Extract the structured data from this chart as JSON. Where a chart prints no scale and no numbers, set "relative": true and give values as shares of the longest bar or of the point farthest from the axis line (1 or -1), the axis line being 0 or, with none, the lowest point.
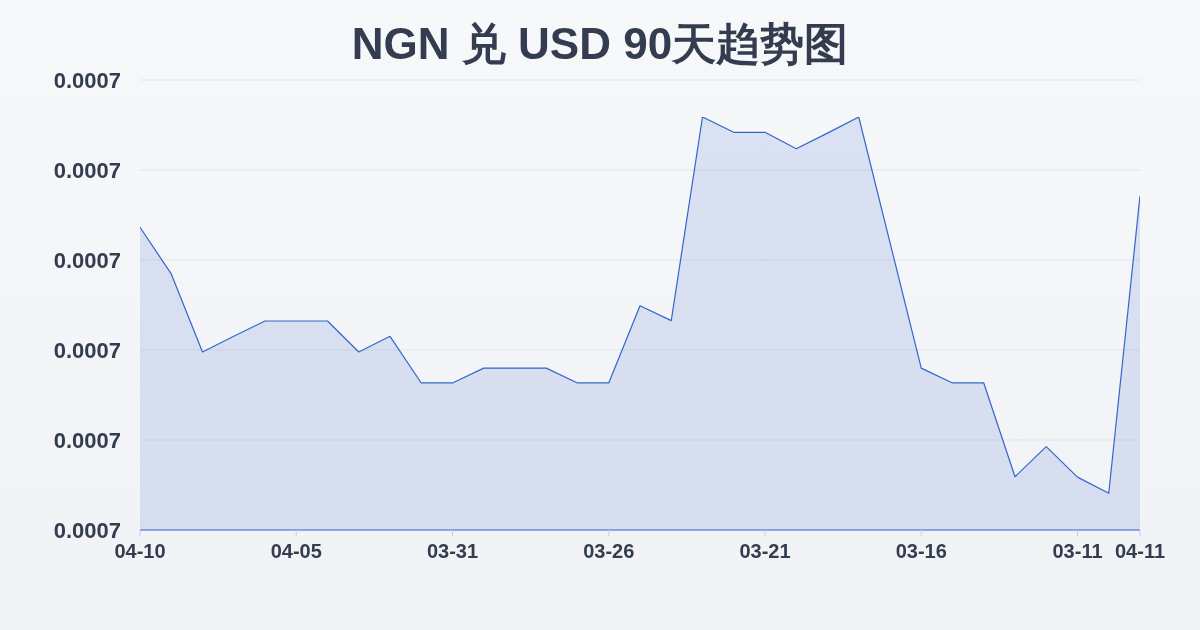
{
  "chart_data": {
    "type": "area",
    "title": "NGN 兑 USD 90天趋势图",
    "categories": [
      "04-10",
      null,
      null,
      null,
      null,
      "04-05",
      null,
      null,
      null,
      null,
      "03-31",
      null,
      null,
      null,
      null,
      "03-26",
      null,
      null,
      null,
      null,
      "03-21",
      null,
      null,
      null,
      null,
      "03-16",
      null,
      null,
      null,
      null,
      "03-11",
      null,
      "04-11"
    ],
    "values": [
      0.733,
      0.62,
      0.431,
      0.469,
      0.506,
      0.506,
      0.506,
      0.431,
      0.469,
      0.356,
      0.356,
      0.392,
      0.392,
      0.392,
      0.356,
      0.356,
      0.543,
      0.507,
      1,
      0.963,
      0.963,
      0.923,
      0.961,
      1,
      0.696,
      0.392,
      0.356,
      0.356,
      0.129,
      0.202,
      0.128,
      0.089,
      0.809
    ],
    "color": "#3366cc",
    "relative": true,
    "annotations": [
      "0.0007",
      "0.0007",
      "0.0007",
      "0.0007",
      "0.0007",
      "0.0007"
    ],
    "grid": "y"
  }
}
